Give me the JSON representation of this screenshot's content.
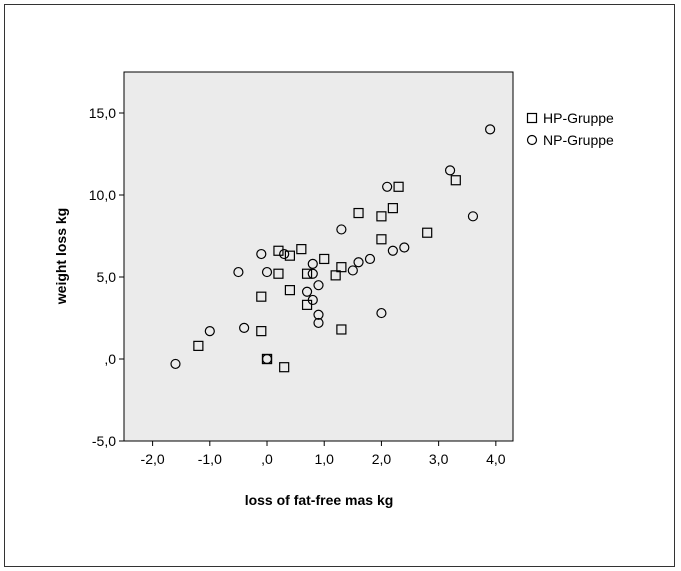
{
  "chart_data": {
    "type": "scatter",
    "xlabel": "loss of fat-free mas kg",
    "ylabel": "weight loss kg",
    "xlim": [
      -2.5,
      4.3
    ],
    "ylim": [
      -5.0,
      17.5
    ],
    "x_ticks": [
      -2,
      -1,
      0,
      1,
      2,
      3,
      4
    ],
    "x_tick_labels": [
      "-2,0",
      "-1,0",
      ",0",
      "1,0",
      "2,0",
      "3,0",
      "4,0"
    ],
    "y_ticks": [
      -5,
      0,
      5,
      10,
      15
    ],
    "y_tick_labels": [
      "-5,0",
      ",0",
      "5,0",
      "10,0",
      "15,0"
    ],
    "grid": false,
    "legend_position": "right",
    "plot_background": "#ebebeb",
    "series": [
      {
        "name": "HP-Gruppe",
        "marker": "square",
        "points": [
          {
            "x": -1.2,
            "y": 0.8
          },
          {
            "x": 0.0,
            "y": 0.0
          },
          {
            "x": 0.0,
            "y": 0.0
          },
          {
            "x": 0.3,
            "y": -0.5
          },
          {
            "x": -0.1,
            "y": 1.7
          },
          {
            "x": -0.1,
            "y": 3.8
          },
          {
            "x": 0.2,
            "y": 5.2
          },
          {
            "x": 0.2,
            "y": 6.6
          },
          {
            "x": 0.4,
            "y": 6.3
          },
          {
            "x": 0.4,
            "y": 4.2
          },
          {
            "x": 0.6,
            "y": 6.7
          },
          {
            "x": 0.7,
            "y": 5.2
          },
          {
            "x": 0.7,
            "y": 3.3
          },
          {
            "x": 1.0,
            "y": 6.1
          },
          {
            "x": 1.2,
            "y": 5.1
          },
          {
            "x": 1.3,
            "y": 5.6
          },
          {
            "x": 1.3,
            "y": 1.8
          },
          {
            "x": 1.6,
            "y": 8.9
          },
          {
            "x": 2.0,
            "y": 8.7
          },
          {
            "x": 2.0,
            "y": 7.3
          },
          {
            "x": 2.2,
            "y": 9.2
          },
          {
            "x": 2.3,
            "y": 10.5
          },
          {
            "x": 2.8,
            "y": 7.7
          },
          {
            "x": 3.3,
            "y": 10.9
          }
        ]
      },
      {
        "name": "NP-Gruppe",
        "marker": "circle",
        "points": [
          {
            "x": -1.6,
            "y": -0.3
          },
          {
            "x": -1.0,
            "y": 1.7
          },
          {
            "x": -0.5,
            "y": 5.3
          },
          {
            "x": -0.4,
            "y": 1.9
          },
          {
            "x": -0.1,
            "y": 6.4
          },
          {
            "x": 0.0,
            "y": 5.3
          },
          {
            "x": 0.0,
            "y": 0.0
          },
          {
            "x": 0.3,
            "y": 6.4
          },
          {
            "x": 0.7,
            "y": 4.1
          },
          {
            "x": 0.8,
            "y": 5.8
          },
          {
            "x": 0.8,
            "y": 5.2
          },
          {
            "x": 0.8,
            "y": 3.6
          },
          {
            "x": 0.9,
            "y": 4.5
          },
          {
            "x": 0.9,
            "y": 2.7
          },
          {
            "x": 0.9,
            "y": 2.2
          },
          {
            "x": 1.3,
            "y": 7.9
          },
          {
            "x": 1.5,
            "y": 5.4
          },
          {
            "x": 1.6,
            "y": 5.9
          },
          {
            "x": 1.8,
            "y": 6.1
          },
          {
            "x": 2.0,
            "y": 2.8
          },
          {
            "x": 2.1,
            "y": 10.5
          },
          {
            "x": 2.2,
            "y": 6.6
          },
          {
            "x": 2.4,
            "y": 6.8
          },
          {
            "x": 3.2,
            "y": 11.5
          },
          {
            "x": 3.6,
            "y": 8.7
          },
          {
            "x": 3.9,
            "y": 14.0
          }
        ]
      }
    ]
  }
}
